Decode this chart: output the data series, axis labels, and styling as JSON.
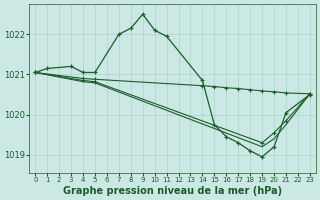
{
  "bg_color": "#cce8e4",
  "grid_color": "#aad4cc",
  "line_color": "#1a5c2a",
  "title": "Graphe pression niveau de la mer (hPa)",
  "title_fontsize": 7,
  "xlim": [
    -0.5,
    23.5
  ],
  "ylim": [
    1018.55,
    1022.75
  ],
  "yticks": [
    1019,
    1020,
    1021,
    1022
  ],
  "xticks": [
    0,
    1,
    2,
    3,
    4,
    5,
    6,
    7,
    8,
    9,
    10,
    11,
    12,
    13,
    14,
    15,
    16,
    17,
    18,
    19,
    20,
    21,
    22,
    23
  ],
  "line1_x": [
    0,
    1,
    3,
    4,
    5,
    7,
    8,
    9,
    10,
    11,
    14,
    15,
    16,
    17,
    18,
    19,
    20,
    21,
    23
  ],
  "line1_y": [
    1021.05,
    1021.15,
    1021.2,
    1021.05,
    1021.05,
    1022.0,
    1022.15,
    1022.5,
    1022.1,
    1021.95,
    1020.85,
    1019.75,
    1019.45,
    1019.3,
    1019.1,
    1018.95,
    1019.2,
    1020.05,
    1020.5
  ],
  "line2_x": [
    0,
    4,
    5,
    14,
    15,
    16,
    17,
    18,
    19,
    20,
    21,
    23
  ],
  "line2_y": [
    1021.05,
    1020.9,
    1020.88,
    1020.72,
    1020.7,
    1020.67,
    1020.65,
    1020.62,
    1020.59,
    1020.57,
    1020.54,
    1020.52
  ],
  "line3_x": [
    0,
    4,
    5,
    19,
    20,
    21,
    23
  ],
  "line3_y": [
    1021.05,
    1020.85,
    1020.82,
    1019.3,
    1019.55,
    1019.85,
    1020.52
  ],
  "line4_x": [
    0,
    4,
    5,
    19,
    20,
    21,
    23
  ],
  "line4_y": [
    1021.05,
    1020.82,
    1020.79,
    1019.2,
    1019.4,
    1019.75,
    1020.52
  ]
}
